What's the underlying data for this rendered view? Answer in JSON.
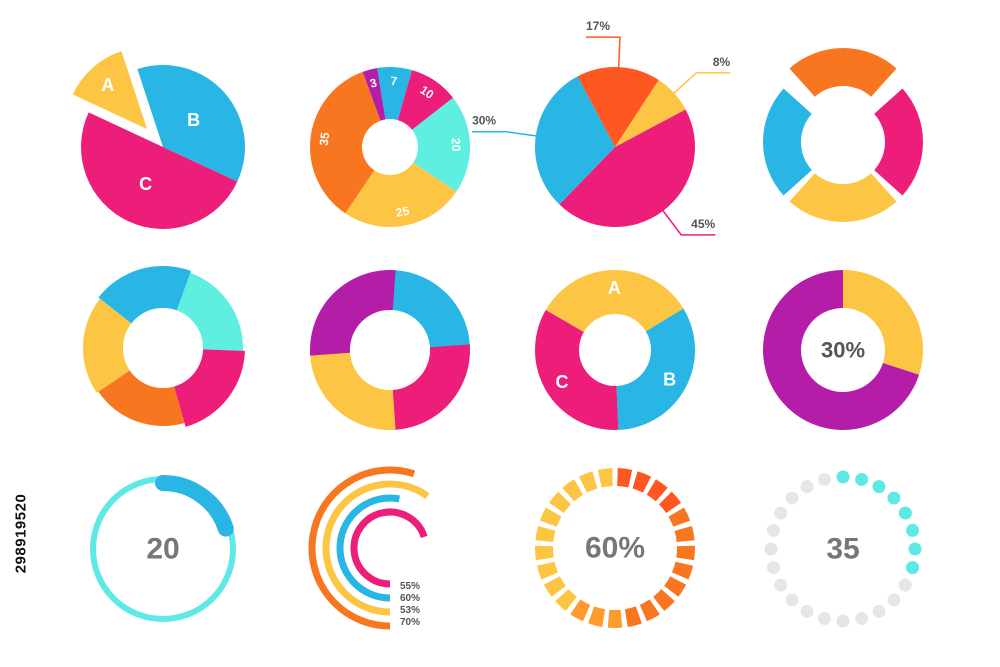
{
  "stock_id": "298919520",
  "colors": {
    "pink": "#ED1E79",
    "blue": "#29B6E4",
    "yellow": "#FDC544",
    "orange": "#F7761F",
    "red": "#FF5722",
    "teal": "#5EEFE0",
    "purple": "#B31DA8",
    "cyan": "#5EE8E6",
    "gray": "#888888",
    "ring_gray": "#E6E6EA"
  },
  "chart_data": [
    {
      "type": "pie",
      "name": "exploded-pie",
      "labels": [
        "A",
        "B",
        "C"
      ],
      "values": [
        13,
        37,
        50
      ]
    },
    {
      "type": "pie",
      "name": "numbered-donut",
      "labels": [
        "3",
        "7",
        "10",
        "20",
        "25",
        "35"
      ],
      "values": [
        3,
        7,
        10,
        20,
        25,
        35
      ]
    },
    {
      "type": "pie",
      "name": "callout-pie",
      "labels": [
        "17%",
        "8%",
        "45%",
        "30%"
      ],
      "values": [
        17,
        8,
        45,
        30
      ]
    },
    {
      "type": "pie",
      "name": "gapped-donut",
      "values": [
        25,
        25,
        25,
        25
      ]
    },
    {
      "type": "pie",
      "name": "jagged-donut",
      "values": [
        20,
        20,
        20,
        20,
        20
      ]
    },
    {
      "type": "pie",
      "name": "interlocked-donut",
      "values": [
        25,
        25,
        25,
        25
      ]
    },
    {
      "type": "pie",
      "name": "wave-donut",
      "labels": [
        "A",
        "B",
        "C"
      ],
      "values": [
        33,
        33,
        34
      ]
    },
    {
      "type": "pie",
      "name": "percent-donut",
      "center_label": "30%",
      "values": [
        30,
        70
      ]
    },
    {
      "type": "gauge",
      "name": "progress-ring",
      "center_label": "20",
      "value": 20
    },
    {
      "type": "bar",
      "name": "radial-arcs",
      "categories": [
        "55%",
        "60%",
        "53%",
        "70%"
      ],
      "values": [
        55,
        60,
        53,
        70
      ]
    },
    {
      "type": "gauge",
      "name": "segmented-ring",
      "center_label": "60%",
      "value": 60
    },
    {
      "type": "gauge",
      "name": "dotted-ring",
      "center_label": "35",
      "value": 35
    }
  ]
}
